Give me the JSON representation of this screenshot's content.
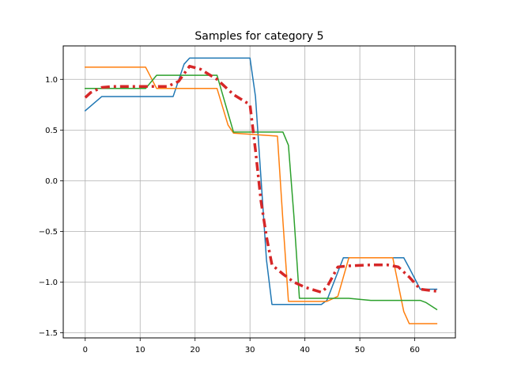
{
  "chart_data": {
    "type": "line",
    "title": "Samples for category 5",
    "xlabel": "",
    "ylabel": "",
    "xlim": [
      -4,
      67.4
    ],
    "ylim": [
      -1.55,
      1.33
    ],
    "xticks": [
      0,
      10,
      20,
      30,
      40,
      50,
      60
    ],
    "xtick_labels": [
      "0",
      "10",
      "20",
      "30",
      "40",
      "50",
      "60"
    ],
    "yticks": [
      -1.5,
      -1.0,
      -0.5,
      0.0,
      0.5,
      1.0
    ],
    "ytick_labels": [
      "−1.5",
      "−1.0",
      "−0.5",
      "0.0",
      "0.5",
      "1.0"
    ],
    "grid": true,
    "series": [
      {
        "color": "#1f77b4",
        "style": "solid",
        "width": 1.5,
        "x": [
          0,
          3,
          16,
          18,
          19,
          30,
          31,
          33,
          34,
          43,
          44,
          47,
          58,
          59,
          61,
          64
        ],
        "y": [
          0.69,
          0.83,
          0.83,
          1.15,
          1.21,
          1.21,
          0.83,
          -0.78,
          -1.22,
          -1.22,
          -1.18,
          -0.76,
          -0.76,
          -0.86,
          -1.07,
          -1.07
        ]
      },
      {
        "color": "#ff7f0e",
        "style": "solid",
        "width": 1.5,
        "x": [
          0,
          11,
          13,
          24,
          26,
          27,
          35,
          36,
          37,
          44,
          46,
          48,
          56,
          58,
          59,
          64
        ],
        "y": [
          1.12,
          1.12,
          0.91,
          0.91,
          0.55,
          0.47,
          0.44,
          -0.4,
          -1.19,
          -1.19,
          -1.14,
          -0.76,
          -0.76,
          -1.29,
          -1.41,
          -1.41
        ]
      },
      {
        "color": "#2ca02c",
        "style": "solid",
        "width": 1.5,
        "x": [
          0,
          11,
          13,
          24,
          27,
          36,
          37,
          38,
          39,
          48,
          52,
          61,
          62,
          64
        ],
        "y": [
          0.91,
          0.91,
          1.04,
          1.04,
          0.48,
          0.48,
          0.35,
          -0.35,
          -1.16,
          -1.16,
          -1.18,
          -1.18,
          -1.2,
          -1.27
        ]
      },
      {
        "color": "#d62728",
        "style": "dashdot",
        "width": 3.5,
        "x": [
          0,
          1,
          3,
          5,
          10,
          15,
          17,
          19,
          21,
          24,
          27,
          30,
          31,
          32,
          33,
          34,
          36,
          38,
          40,
          43,
          44,
          46,
          48,
          52,
          55,
          57,
          59,
          61,
          64
        ],
        "y": [
          0.82,
          0.87,
          0.92,
          0.93,
          0.93,
          0.93,
          0.98,
          1.13,
          1.1,
          1.0,
          0.85,
          0.75,
          0.3,
          -0.2,
          -0.55,
          -0.83,
          -0.92,
          -1.0,
          -1.05,
          -1.1,
          -1.05,
          -0.85,
          -0.84,
          -0.83,
          -0.83,
          -0.85,
          -0.95,
          -1.07,
          -1.09
        ]
      }
    ]
  }
}
